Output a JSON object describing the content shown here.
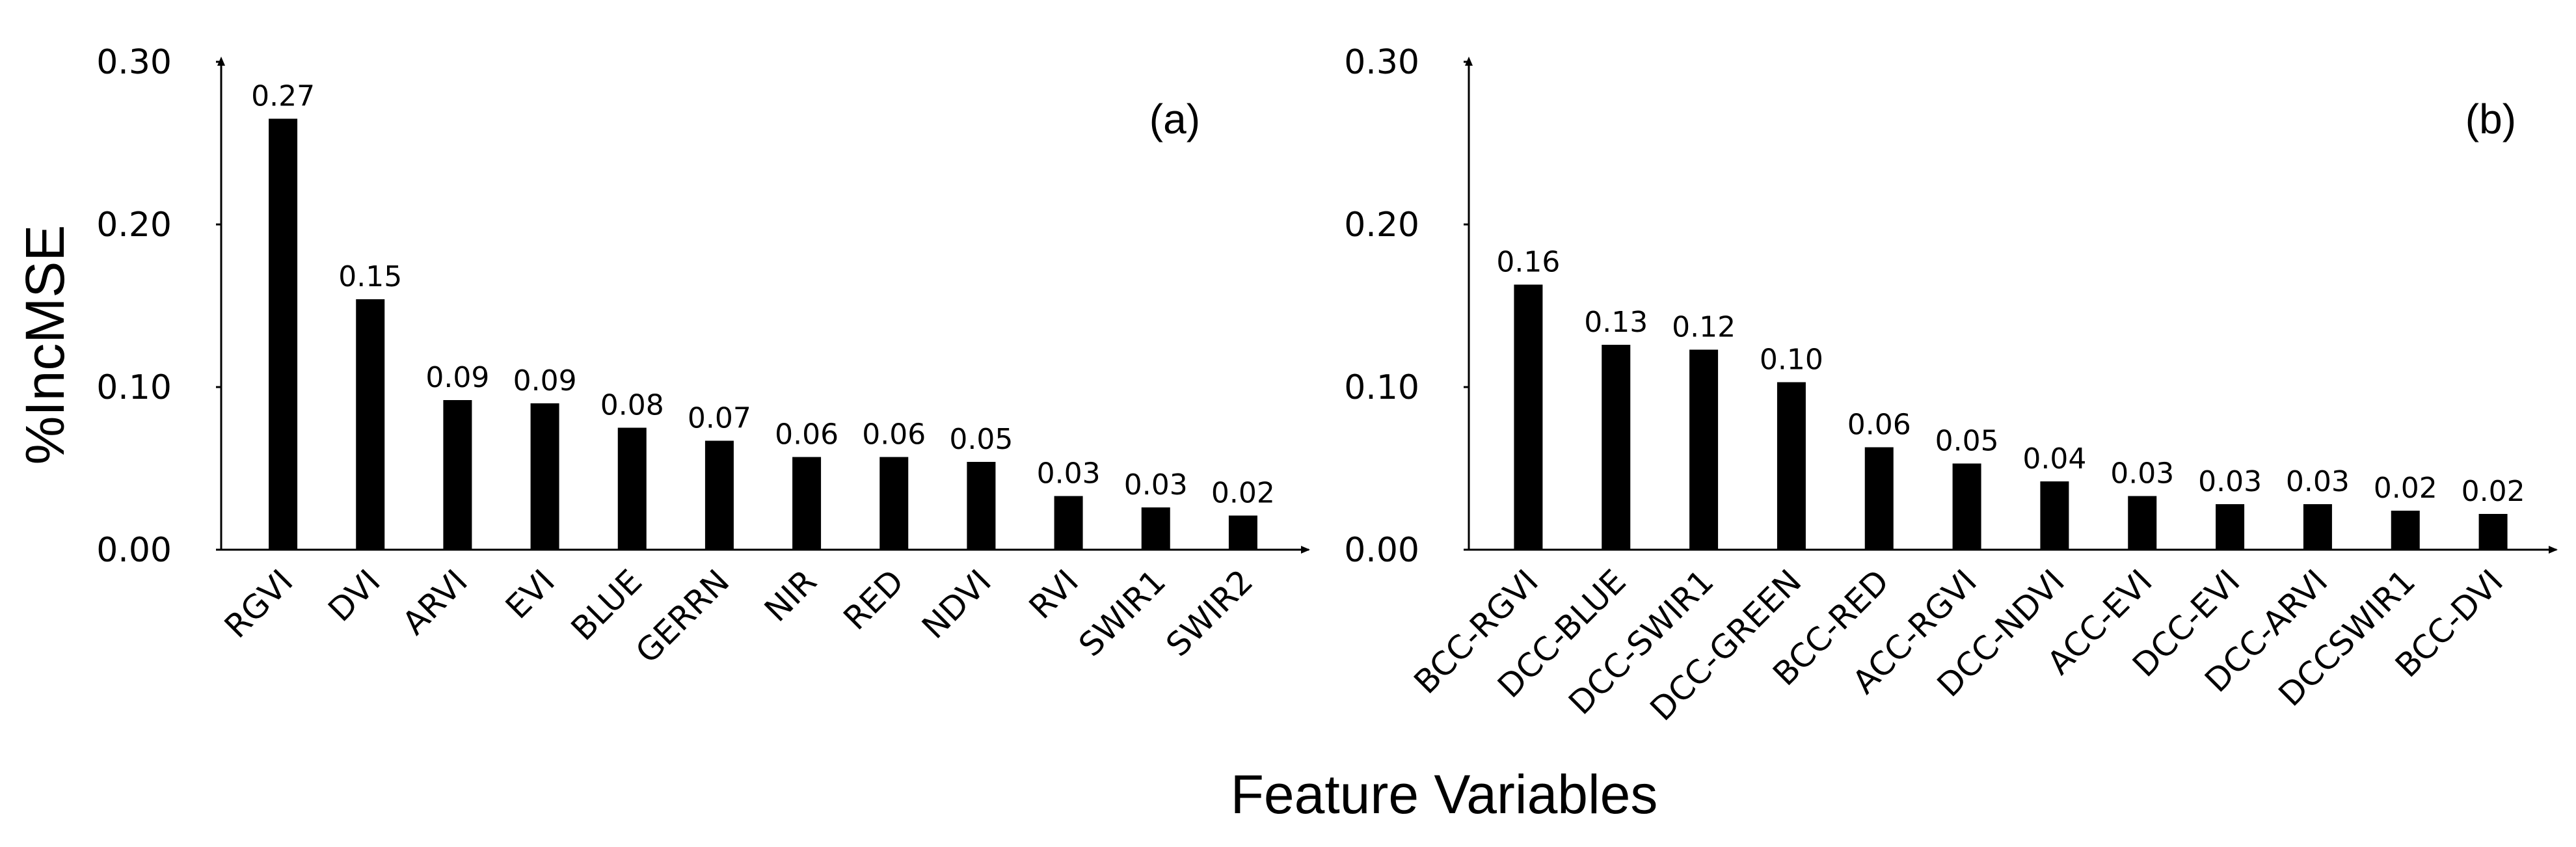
{
  "shared": {
    "ylabel": "%IncMSE",
    "xlabel": "Feature Variables"
  },
  "chart_data": [
    {
      "type": "bar",
      "panel_label": "(a)",
      "ylim": [
        0,
        0.3
      ],
      "yticks": [
        "0.00",
        "0.10",
        "0.20",
        "0.30"
      ],
      "categories": [
        "RGVI",
        "DVI",
        "ARVI",
        "EVI",
        "BLUE",
        "GERRN",
        "NIR",
        "RED",
        "NDVI",
        "RVI",
        "SWIR1",
        "SWIR2"
      ],
      "values": [
        0.265,
        0.154,
        0.092,
        0.09,
        0.075,
        0.067,
        0.057,
        0.057,
        0.054,
        0.033,
        0.026,
        0.021
      ],
      "value_labels": [
        "0.27",
        "0.15",
        "0.09",
        "0.09",
        "0.08",
        "0.07",
        "0.06",
        "0.06",
        "0.05",
        "0.03",
        "0.03",
        "0.02"
      ],
      "grid": false,
      "bar_color": "#000000"
    },
    {
      "type": "bar",
      "panel_label": "(b)",
      "ylim": [
        0,
        0.3
      ],
      "yticks": [
        "0.00",
        "0.10",
        "0.20",
        "0.30"
      ],
      "categories": [
        "BCC-RGVI",
        "DCC-BLUE",
        "DCC-SWIR1",
        "DCC-GREEN",
        "BCC-RED",
        "ACC-RGVI",
        "DCC-NDVI",
        "ACC-EVI",
        "DCC-EVI",
        "DCC-ARVI",
        "DCCSWIR1",
        "BCC-DVI"
      ],
      "values": [
        0.163,
        0.126,
        0.123,
        0.103,
        0.063,
        0.053,
        0.042,
        0.033,
        0.028,
        0.028,
        0.024,
        0.022
      ],
      "value_labels": [
        "0.16",
        "0.13",
        "0.12",
        "0.10",
        "0.06",
        "0.05",
        "0.04",
        "0.03",
        "0.03",
        "0.03",
        "0.02",
        "0.02"
      ],
      "grid": false,
      "bar_color": "#000000"
    }
  ]
}
